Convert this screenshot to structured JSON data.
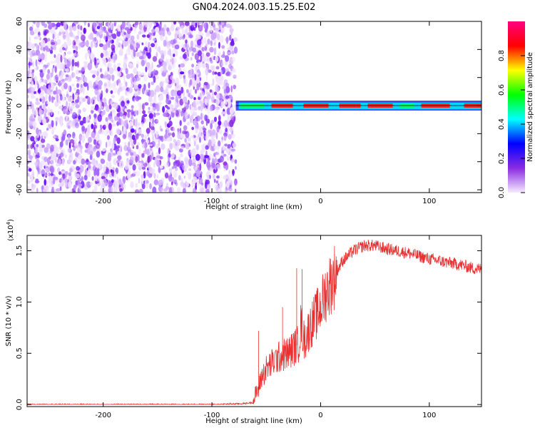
{
  "title": "GN04.2024.003.15.25.E02",
  "chart_data": [
    {
      "type": "heatmap",
      "title": "GN04.2024.003.15.25.E02",
      "xlabel": "Height of straight line (km)",
      "ylabel": "Frequency (Hz)",
      "xlim": [
        -270,
        148
      ],
      "ylim": [
        -62,
        60
      ],
      "x_ticks": [
        -200,
        -100,
        0,
        100
      ],
      "x_tick_labels": [
        "-200",
        "-100",
        "0",
        "100"
      ],
      "y_ticks": [
        -60,
        -40,
        -20,
        0,
        20,
        40,
        60
      ],
      "y_tick_labels": [
        "-60",
        "-40",
        "-20",
        "0",
        "20",
        "40",
        "60"
      ],
      "noise_region_x": [
        -270,
        -78
      ],
      "signal_band_y": [
        -2,
        2
      ],
      "colorbar": {
        "label": "Normalized spectral amplitude",
        "range": [
          0,
          1
        ],
        "ticks": [
          0.0,
          0.2,
          0.4,
          0.6,
          0.8
        ],
        "tick_labels": [
          "0.0",
          "0.2",
          "0.4",
          "0.6",
          "0.8"
        ],
        "colors": [
          "#f6eaff",
          "#8a2be2",
          "#0000ff",
          "#00ffff",
          "#00ff00",
          "#ffff00",
          "#ff0000",
          "#ff0080"
        ]
      },
      "grid": false
    },
    {
      "type": "line",
      "xlabel": "Height of straight line (km)",
      "ylabel": "SNR (10 * v/v)",
      "multiplier_label": "(x10",
      "multiplier_exp": "4",
      "multiplier_close": ")",
      "xlim": [
        -270,
        148
      ],
      "ylim": [
        -0.02,
        1.65
      ],
      "x_ticks": [
        -200,
        -100,
        0,
        100
      ],
      "x_tick_labels": [
        "-200",
        "-100",
        "0",
        "100"
      ],
      "y_ticks": [
        0.0,
        0.5,
        1.0,
        1.5
      ],
      "y_tick_labels": [
        "0.0",
        "0.5",
        "1.0",
        "1.5"
      ],
      "color": "#e83030",
      "series": [
        {
          "x": [
            -270,
            -200,
            -100,
            -70,
            -62,
            -60,
            -57,
            -55,
            -50,
            -45,
            -40,
            -35,
            -30,
            -25,
            -20,
            -18,
            -15,
            -10,
            -5,
            0,
            5,
            10,
            15,
            20,
            25,
            30,
            40,
            50,
            60,
            70,
            80,
            90,
            100,
            110,
            120,
            130,
            140,
            148
          ],
          "y": [
            0.0,
            0.0,
            0.0,
            0.01,
            0.02,
            0.1,
            0.15,
            0.25,
            0.35,
            0.4,
            0.45,
            0.48,
            0.5,
            0.55,
            0.6,
            0.8,
            0.62,
            0.75,
            0.85,
            0.95,
            1.1,
            1.2,
            1.3,
            1.4,
            1.45,
            1.5,
            1.55,
            1.55,
            1.52,
            1.5,
            1.48,
            1.45,
            1.42,
            1.4,
            1.38,
            1.36,
            1.33,
            1.32
          ]
        }
      ],
      "spikes": [
        {
          "x": -22,
          "y": 1.33
        },
        {
          "x": -17,
          "y": 1.32
        },
        {
          "x": -35,
          "y": 0.95
        },
        {
          "x": -57,
          "y": 0.72
        }
      ],
      "grid": false
    }
  ]
}
